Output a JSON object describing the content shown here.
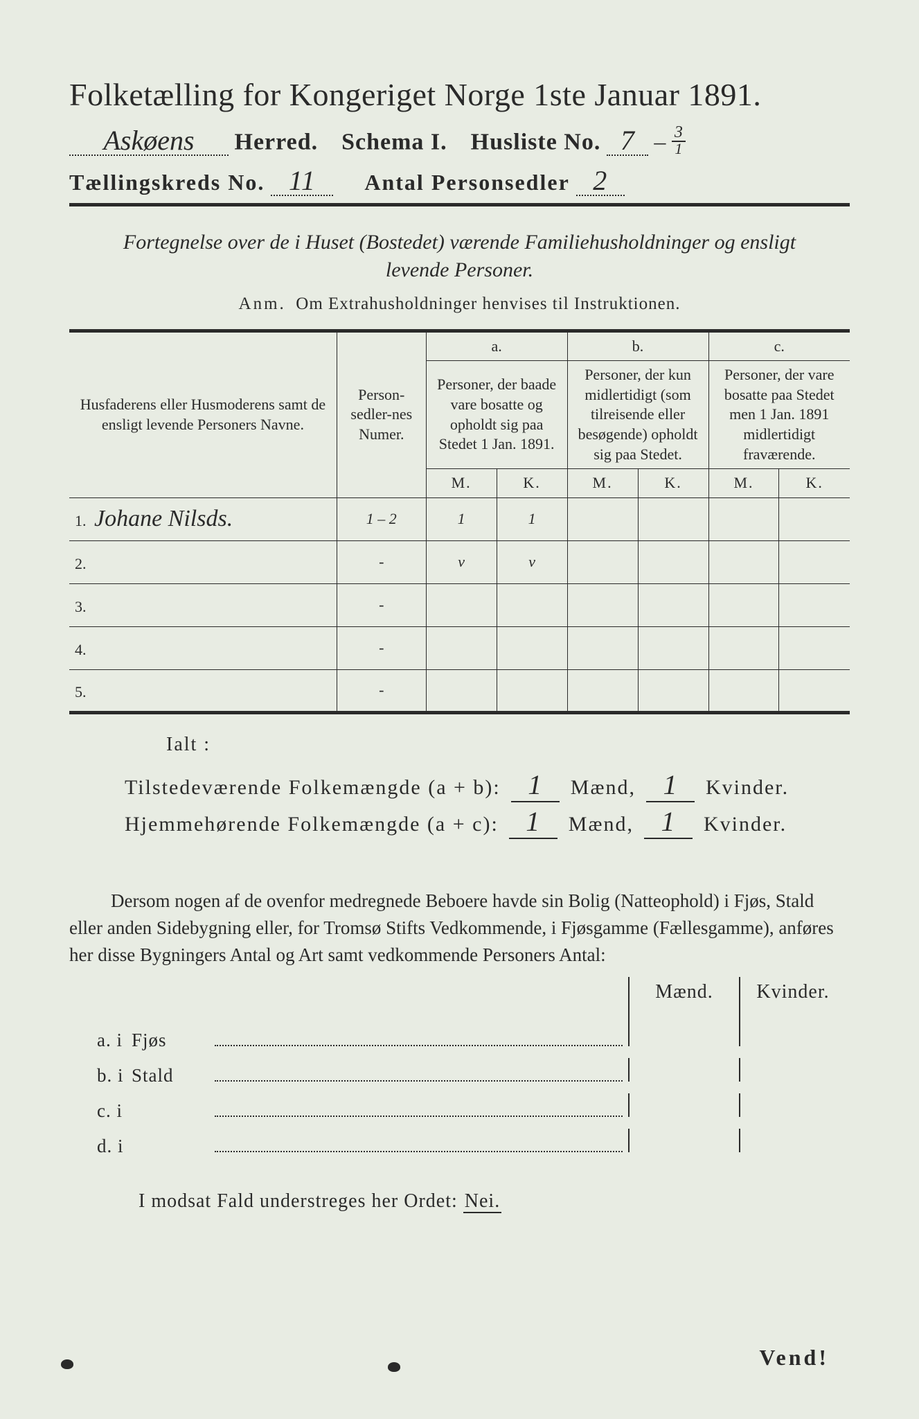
{
  "title": "Folketælling for Kongeriget Norge 1ste Januar 1891.",
  "header": {
    "herred_value": "Askøens",
    "herred_label": "Herred.",
    "schema_label": "Schema I.",
    "husliste_label": "Husliste No.",
    "husliste_value": "7",
    "husliste_frac_num": "3",
    "husliste_frac_den": "1",
    "kreds_label": "Tællingskreds No.",
    "kreds_value": "11",
    "antal_label": "Antal Personsedler",
    "antal_value": "2"
  },
  "fortegnelse_line1": "Fortegnelse over de i Huset (Bostedet) værende Familiehusholdninger og ensligt",
  "fortegnelse_line2": "levende Personer.",
  "anm_lead": "Anm.",
  "anm_text": "Om Extrahusholdninger henvises til Instruktionen.",
  "table": {
    "head_name": "Husfaderens eller Husmoderens samt de ensligt levende Personers Navne.",
    "head_num": "Person-sedler-nes Numer.",
    "col_a_tag": "a.",
    "col_a": "Personer, der baade vare bosatte og opholdt sig paa Stedet 1 Jan. 1891.",
    "col_b_tag": "b.",
    "col_b": "Personer, der kun midlertidigt (som tilreisende eller besøgende) opholdt sig paa Stedet.",
    "col_c_tag": "c.",
    "col_c": "Personer, der vare bosatte paa Stedet men 1 Jan. 1891 midlertidigt fraværende.",
    "M": "M.",
    "K": "K.",
    "rows": [
      {
        "n": "1.",
        "name": "Johane Nilsds.",
        "num": "1 – 2",
        "aM": "1",
        "aK": "1",
        "bM": "",
        "bK": "",
        "cM": "",
        "cK": ""
      },
      {
        "n": "2.",
        "name": "",
        "num": "-",
        "aM": "v",
        "aK": "v",
        "bM": "",
        "bK": "",
        "cM": "",
        "cK": ""
      },
      {
        "n": "3.",
        "name": "",
        "num": "-",
        "aM": "",
        "aK": "",
        "bM": "",
        "bK": "",
        "cM": "",
        "cK": ""
      },
      {
        "n": "4.",
        "name": "",
        "num": "-",
        "aM": "",
        "aK": "",
        "bM": "",
        "bK": "",
        "cM": "",
        "cK": ""
      },
      {
        "n": "5.",
        "name": "",
        "num": "-",
        "aM": "",
        "aK": "",
        "bM": "",
        "bK": "",
        "cM": "",
        "cK": ""
      }
    ]
  },
  "ialt": "Ialt :",
  "sum1_label": "Tilstedeværende Folkemængde (a + b):",
  "sum2_label": "Hjemmehørende Folkemængde (a + c):",
  "sum_maend": "Mænd,",
  "sum_kvinder": "Kvinder.",
  "sum1_m": "1",
  "sum1_k": "1",
  "sum2_m": "1",
  "sum2_k": "1",
  "para": "Dersom nogen af de ovenfor medregnede Beboere havde sin Bolig (Natteophold) i Fjøs, Stald eller anden Sidebygning eller, for Tromsø Stifts Vedkommende, i Fjøsgamme (Fællesgamme), anføres her disse Bygningers Antal og Art samt vedkommende Personers Antal:",
  "mk_m": "Mænd.",
  "mk_k": "Kvinder.",
  "abl": [
    {
      "lead": "a.  i",
      "lbl": "Fjøs"
    },
    {
      "lead": "b.  i",
      "lbl": "Stald"
    },
    {
      "lead": "c.  i",
      "lbl": ""
    },
    {
      "lead": "d.  i",
      "lbl": ""
    }
  ],
  "modsat": "I modsat Fald understreges her Ordet:",
  "nei": "Nei.",
  "vend": "Vend!"
}
